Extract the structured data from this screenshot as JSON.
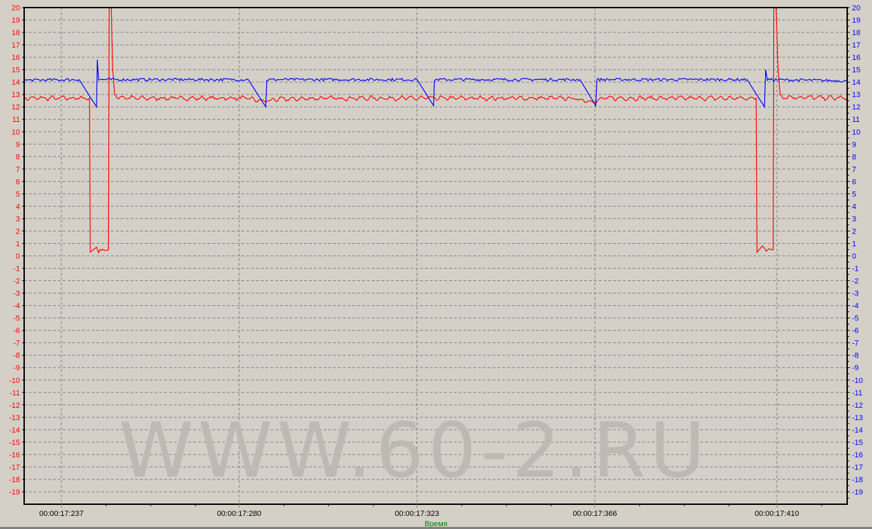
{
  "chart_data": {
    "type": "line",
    "title": "",
    "xlabel": "Время",
    "x_tick_labels": [
      "00:00:17:237",
      "00:00:17:280",
      "00:00:17:323",
      "00:00:17:366",
      "00:00:17:410"
    ],
    "x_ticks": [
      17237,
      17280,
      17323,
      17366,
      17410
    ],
    "xlim": [
      17228,
      17427
    ],
    "ylim": [
      -20,
      20
    ],
    "y_ticks_left": [
      20,
      19,
      18,
      17,
      16,
      15,
      14,
      13,
      12,
      11,
      10,
      9,
      8,
      7,
      6,
      5,
      4,
      3,
      2,
      1,
      0,
      -1,
      -2,
      -3,
      -4,
      -5,
      -6,
      -7,
      -8,
      -9,
      -10,
      -11,
      -12,
      -13,
      -14,
      -15,
      -16,
      -17,
      -18,
      -19
    ],
    "y_ticks_right": [
      20,
      19,
      18,
      17,
      16,
      15,
      14,
      13,
      12,
      11,
      10,
      9,
      8,
      7,
      6,
      5,
      4,
      3,
      2,
      1,
      0,
      -1,
      -2,
      -3,
      -4,
      -5,
      -6,
      -7,
      -8,
      -9,
      -10,
      -11,
      -12,
      -13,
      -14,
      -15,
      -16,
      -17,
      -18,
      -19
    ],
    "left_axis_color": "#ff0000",
    "right_axis_color": "#0000ff",
    "xlabel_color": "#008000",
    "grid": true,
    "series": [
      {
        "color": "#ff0000",
        "axis": "left",
        "x": [
          17228,
          17243.8,
          17244.0,
          17245.5,
          17246.0,
          17248.4,
          17248.6,
          17249.1,
          17249.4,
          17249.9,
          17250.5,
          17255,
          17280,
          17282,
          17286.4,
          17288,
          17300,
          17330,
          17360,
          17366.2,
          17368,
          17405.0,
          17405.2,
          17406.5,
          17407.4,
          17409.1,
          17409.3,
          17409.9,
          17410.3,
          17410.8,
          17411.5,
          17427
        ],
        "y": [
          12.7,
          12.7,
          0.3,
          0.7,
          0.4,
          0.5,
          25,
          19.5,
          15,
          13,
          12.8,
          12.7,
          12.7,
          12.7,
          12.4,
          12.6,
          12.7,
          12.7,
          12.7,
          12.4,
          12.7,
          12.7,
          0.3,
          0.8,
          0.5,
          0.5,
          25,
          19,
          15,
          13,
          12.8,
          12.7
        ]
      },
      {
        "color": "#0000ff",
        "axis": "right",
        "x": [
          17228,
          17241.3,
          17245.5,
          17245.7,
          17246.0,
          17282.2,
          17286.4,
          17286.7,
          17323.0,
          17327.0,
          17327.2,
          17362.4,
          17366.2,
          17366.5,
          17402.8,
          17407.0,
          17407.3,
          17407.7,
          17427
        ],
        "y": [
          14.15,
          14.2,
          12.0,
          15.8,
          14.2,
          14.2,
          12.0,
          14.2,
          14.2,
          12.1,
          14.2,
          14.2,
          12.1,
          14.2,
          14.2,
          12.0,
          15.0,
          14.2,
          14.1
        ]
      }
    ]
  },
  "watermark": "WWW.60-2.RU"
}
